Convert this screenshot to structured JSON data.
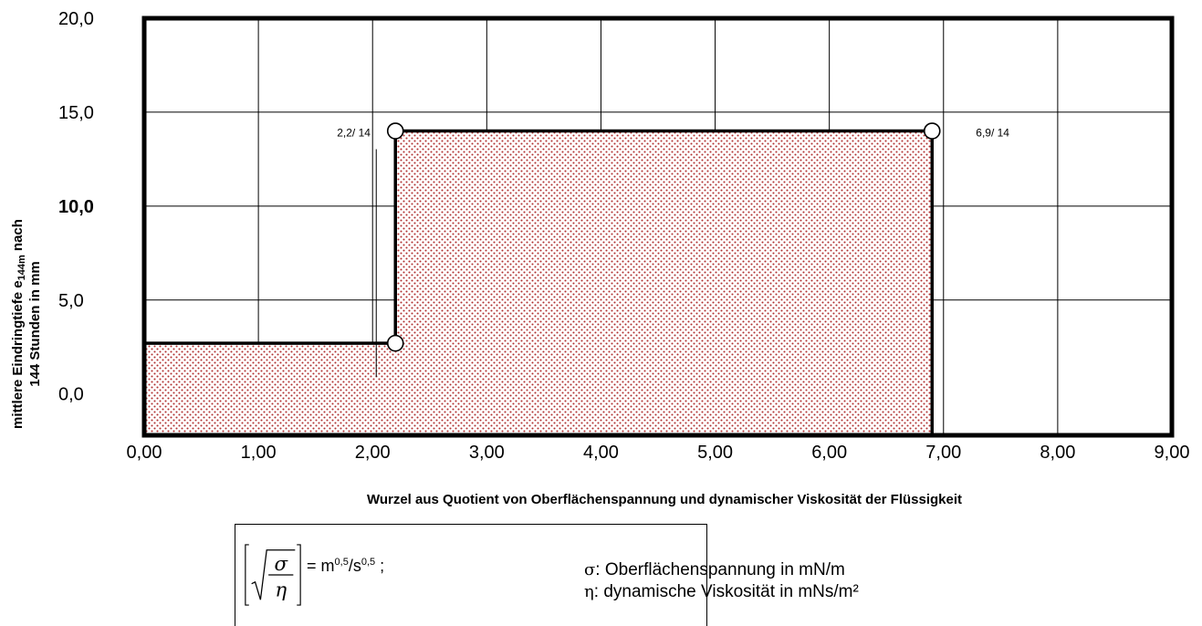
{
  "chart_data": {
    "type": "area",
    "title": "",
    "xlabel": "Wurzel aus Quotient von Oberflächenspannung und dynamischer Viskosität der Flüssigkeit",
    "ylabel_line1": "mittlere  Eindringtiefe  e",
    "ylabel_sub": "144m",
    "ylabel_line1_suffix": " nach",
    "ylabel_line2": "144 Stunden in mm",
    "xlim": [
      0,
      9
    ],
    "ylim": [
      -2.2,
      20
    ],
    "x_ticks": [
      {
        "value": 0,
        "label": "0,00"
      },
      {
        "value": 1,
        "label": "1,00"
      },
      {
        "value": 2,
        "label": "2,00"
      },
      {
        "value": 3,
        "label": "3,00"
      },
      {
        "value": 4,
        "label": "4,00"
      },
      {
        "value": 5,
        "label": "5,00"
      },
      {
        "value": 6,
        "label": "6,00"
      },
      {
        "value": 7,
        "label": "7,00"
      },
      {
        "value": 8,
        "label": "8,00"
      },
      {
        "value": 9,
        "label": "9,00"
      }
    ],
    "y_ticks": [
      {
        "value": 0,
        "label": "0,0",
        "bold": false
      },
      {
        "value": 5,
        "label": "5,0",
        "bold": false
      },
      {
        "value": 10,
        "label": "10,0",
        "bold": true
      },
      {
        "value": 15,
        "label": "15,0",
        "bold": false
      },
      {
        "value": 20,
        "label": "20,0",
        "bold": false
      }
    ],
    "x_gridlines": [
      1,
      2,
      3,
      4,
      5,
      6,
      7,
      8
    ],
    "y_gridlines": [
      5,
      10,
      15
    ],
    "grid": true,
    "region": {
      "boundary": [
        [
          0,
          2.7
        ],
        [
          2.2,
          2.7
        ],
        [
          2.2,
          14
        ],
        [
          6.9,
          14
        ],
        [
          6.9,
          -2.2
        ]
      ],
      "fill_color": "#b03030"
    },
    "points": [
      {
        "x": 2.2,
        "y": 2.7,
        "label": ""
      },
      {
        "x": 2.2,
        "y": 14,
        "label": "2,2/ 14"
      },
      {
        "x": 6.9,
        "y": 14,
        "label": "6,9/ 14"
      }
    ]
  },
  "legend": {
    "formula_symbol_top": "σ",
    "formula_symbol_bottom": "η",
    "unit_prefix": "= m",
    "unit_exp1": "0,5",
    "unit_mid": "/s",
    "unit_exp2": "0,5",
    "unit_suffix": " ;",
    "def_sigma_symbol": "σ",
    "def_sigma_text": ": Oberflächenspannung in mN/m",
    "def_eta_symbol": "η",
    "def_eta_text": ": dynamische Viskosität in mNs/m²"
  }
}
